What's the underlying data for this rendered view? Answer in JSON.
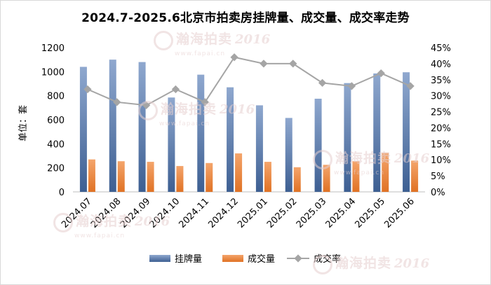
{
  "watermark": {
    "brand": "瀚海拍卖",
    "year": "2016",
    "url": "www.fapai.cn"
  },
  "chart_data": {
    "type": "bar",
    "title": "2024.7-2025.6北京市拍卖房挂牌量、成交量、成交率走势",
    "ylabel": "单位：套",
    "categories": [
      "2024.07",
      "2024.08",
      "2024.09",
      "2024.10",
      "2024.11",
      "2024.12",
      "2025.01",
      "2025.02",
      "2025.03",
      "2025.04",
      "2025.05",
      "2025.06"
    ],
    "ylim": [
      0,
      1200
    ],
    "y_ticks": [
      "0",
      "200",
      "400",
      "600",
      "800",
      "1000",
      "1200"
    ],
    "y2lim": [
      0,
      45
    ],
    "y2_ticks": [
      "0%",
      "5%",
      "10%",
      "15%",
      "20%",
      "25%",
      "30%",
      "35%",
      "40%",
      "45%"
    ],
    "series": [
      {
        "name": "挂牌量",
        "type": "bar",
        "axis": "left",
        "color": "#5b7dae",
        "values": [
          1040,
          1100,
          1080,
          785,
          975,
          870,
          720,
          615,
          775,
          905,
          985,
          995
        ]
      },
      {
        "name": "成交量",
        "type": "bar",
        "axis": "left",
        "color": "#ed7d31",
        "values": [
          270,
          255,
          250,
          215,
          240,
          320,
          250,
          205,
          225,
          255,
          325,
          260
        ]
      },
      {
        "name": "成交率",
        "type": "line",
        "axis": "right",
        "color": "#a5a5a5",
        "values": [
          32,
          28,
          27,
          32,
          28,
          42,
          40,
          40,
          34,
          33,
          37,
          33
        ]
      }
    ],
    "legend_position": "bottom",
    "grid": false
  }
}
